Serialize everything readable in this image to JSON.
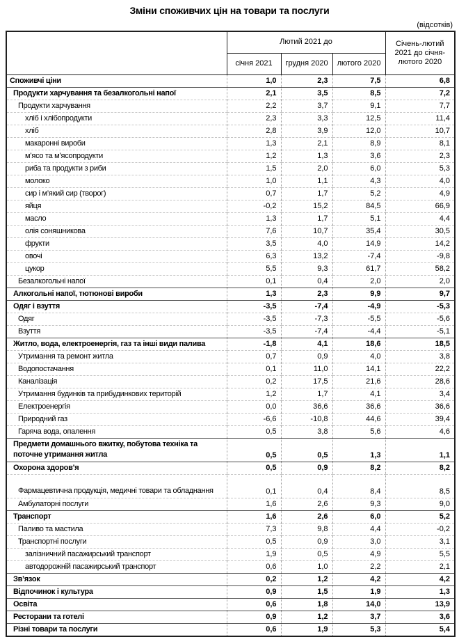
{
  "page": {
    "title": "Зміни споживчих цін на товари та послуги",
    "unit_note": "(відсотків)"
  },
  "table": {
    "header": {
      "period_group": "Лютий 2021 до",
      "columns": [
        "січня 2021",
        "грудня 2020",
        "лютого 2020"
      ],
      "cumulative_column": "Січень-лютий 2021 до січня-лютого 2020"
    },
    "rows": [
      {
        "label": "Споживчі ціни",
        "level": 0,
        "bold": true,
        "section": false,
        "wrap": false,
        "values": [
          "1,0",
          "2,3",
          "7,5",
          "6,8"
        ]
      },
      {
        "label": "Продукти харчування та безалкогольні напої",
        "level": 1,
        "bold": true,
        "section": true,
        "wrap": false,
        "values": [
          "2,1",
          "3,5",
          "8,5",
          "7,2"
        ]
      },
      {
        "label": "Продукти харчування",
        "level": 2,
        "bold": false,
        "section": false,
        "wrap": false,
        "values": [
          "2,2",
          "3,7",
          "9,1",
          "7,7"
        ]
      },
      {
        "label": "хліб і хлібопродукти",
        "level": 3,
        "bold": false,
        "section": false,
        "wrap": false,
        "values": [
          "2,3",
          "3,3",
          "12,5",
          "11,4"
        ]
      },
      {
        "label": "хліб",
        "level": 3,
        "bold": false,
        "section": false,
        "wrap": false,
        "values": [
          "2,8",
          "3,9",
          "12,0",
          "10,7"
        ]
      },
      {
        "label": "макаронні вироби",
        "level": 3,
        "bold": false,
        "section": false,
        "wrap": false,
        "values": [
          "1,3",
          "2,1",
          "8,9",
          "8,1"
        ]
      },
      {
        "label": "м’ясо та м’ясопродукти",
        "level": 3,
        "bold": false,
        "section": false,
        "wrap": false,
        "values": [
          "1,2",
          "1,3",
          "3,6",
          "2,3"
        ]
      },
      {
        "label": "риба та продукти з риби",
        "level": 3,
        "bold": false,
        "section": false,
        "wrap": false,
        "values": [
          "1,5",
          "2,0",
          "6,0",
          "5,3"
        ]
      },
      {
        "label": "молоко",
        "level": 3,
        "bold": false,
        "section": false,
        "wrap": false,
        "values": [
          "1,0",
          "1,1",
          "4,3",
          "4,0"
        ]
      },
      {
        "label": "сир і м’який сир (творог)",
        "level": 3,
        "bold": false,
        "section": false,
        "wrap": false,
        "values": [
          "0,7",
          "1,7",
          "5,2",
          "4,9"
        ]
      },
      {
        "label": "яйця",
        "level": 3,
        "bold": false,
        "section": false,
        "wrap": false,
        "values": [
          "-0,2",
          "15,2",
          "84,5",
          "66,9"
        ]
      },
      {
        "label": "масло",
        "level": 3,
        "bold": false,
        "section": false,
        "wrap": false,
        "values": [
          "1,3",
          "1,7",
          "5,1",
          "4,4"
        ]
      },
      {
        "label": "олія соняшникова",
        "level": 3,
        "bold": false,
        "section": false,
        "wrap": false,
        "values": [
          "7,6",
          "10,7",
          "35,4",
          "30,5"
        ]
      },
      {
        "label": "фрукти",
        "level": 3,
        "bold": false,
        "section": false,
        "wrap": false,
        "values": [
          "3,5",
          "4,0",
          "14,9",
          "14,2"
        ]
      },
      {
        "label": "овочі",
        "level": 3,
        "bold": false,
        "section": false,
        "wrap": false,
        "values": [
          "6,3",
          "13,2",
          "-7,4",
          "-9,8"
        ]
      },
      {
        "label": "цукор",
        "level": 3,
        "bold": false,
        "section": false,
        "wrap": false,
        "values": [
          "5,5",
          "9,3",
          "61,7",
          "58,2"
        ]
      },
      {
        "label": "Безалкогольні напої",
        "level": 2,
        "bold": false,
        "section": false,
        "wrap": false,
        "values": [
          "0,1",
          "0,4",
          "2,0",
          "2,0"
        ]
      },
      {
        "label": "Алкогольні напої, тютюнові вироби",
        "level": 1,
        "bold": true,
        "section": true,
        "wrap": false,
        "values": [
          "1,3",
          "2,3",
          "9,9",
          "9,7"
        ]
      },
      {
        "label": "Одяг і взуття",
        "level": 1,
        "bold": true,
        "section": true,
        "wrap": false,
        "values": [
          "-3,5",
          "-7,4",
          "-4,9",
          "-5,3"
        ]
      },
      {
        "label": "Одяг",
        "level": 2,
        "bold": false,
        "section": false,
        "wrap": false,
        "values": [
          "-3,5",
          "-7,3",
          "-5,5",
          "-5,6"
        ]
      },
      {
        "label": "Взуття",
        "level": 2,
        "bold": false,
        "section": false,
        "wrap": false,
        "values": [
          "-3,5",
          "-7,4",
          "-4,4",
          "-5,1"
        ]
      },
      {
        "label": "Житло, вода, електроенергія, газ та інші види палива",
        "level": 1,
        "bold": true,
        "section": true,
        "wrap": false,
        "values": [
          "-1,8",
          "4,1",
          "18,6",
          "18,5"
        ]
      },
      {
        "label": "Утримання та ремонт житла",
        "level": 2,
        "bold": false,
        "section": false,
        "wrap": false,
        "values": [
          "0,7",
          "0,9",
          "4,0",
          "3,8"
        ]
      },
      {
        "label": "Водопостачання",
        "level": 2,
        "bold": false,
        "section": false,
        "wrap": false,
        "values": [
          "0,1",
          "11,0",
          "14,1",
          "22,2"
        ]
      },
      {
        "label": "Каналізація",
        "level": 2,
        "bold": false,
        "section": false,
        "wrap": false,
        "values": [
          "0,2",
          "17,5",
          "21,6",
          "28,6"
        ]
      },
      {
        "label": "Утримання будинків та прибудинкових територій",
        "level": 2,
        "bold": false,
        "section": false,
        "wrap": false,
        "values": [
          "1,2",
          "1,7",
          "4,1",
          "3,4"
        ]
      },
      {
        "label": "Електроенергія",
        "level": 2,
        "bold": false,
        "section": false,
        "wrap": false,
        "values": [
          "0,0",
          "36,6",
          "36,6",
          "36,6"
        ]
      },
      {
        "label": "Природний газ",
        "level": 2,
        "bold": false,
        "section": false,
        "wrap": false,
        "values": [
          "-6,6",
          "-10,8",
          "44,6",
          "39,4"
        ]
      },
      {
        "label": "Гаряча вода, опалення",
        "level": 2,
        "bold": false,
        "section": false,
        "wrap": false,
        "values": [
          "0,5",
          "3,8",
          "5,6",
          "4,6"
        ]
      },
      {
        "label": "Предмети домашнього вжитку, побутова техніка та поточне утримання житла",
        "level": 1,
        "bold": true,
        "section": true,
        "wrap": true,
        "values": [
          "0,5",
          "0,5",
          "1,3",
          "1,1"
        ]
      },
      {
        "label": "Охорона здоров’я",
        "level": 1,
        "bold": true,
        "section": true,
        "wrap": false,
        "values": [
          "0,5",
          "0,9",
          "8,2",
          "8,2"
        ]
      },
      {
        "label": "Фармацевтична продукція, медичні товари та обладнання",
        "level": 2,
        "bold": false,
        "section": false,
        "wrap": true,
        "values": [
          "0,1",
          "0,4",
          "8,4",
          "8,5"
        ]
      },
      {
        "label": "Амбулаторні послуги",
        "level": 2,
        "bold": false,
        "section": false,
        "wrap": false,
        "values": [
          "1,6",
          "2,6",
          "9,3",
          "9,0"
        ]
      },
      {
        "label": "Транспорт",
        "level": 1,
        "bold": true,
        "section": true,
        "wrap": false,
        "values": [
          "1,6",
          "2,6",
          "6,0",
          "5,2"
        ]
      },
      {
        "label": "Паливо та мастила",
        "level": 2,
        "bold": false,
        "section": false,
        "wrap": false,
        "values": [
          "7,3",
          "9,8",
          "4,4",
          "-0,2"
        ]
      },
      {
        "label": "Транспортні послуги",
        "level": 2,
        "bold": false,
        "section": false,
        "wrap": false,
        "values": [
          "0,5",
          "0,9",
          "3,0",
          "3,1"
        ]
      },
      {
        "label": "залізничний пасажирський транспорт",
        "level": 3,
        "bold": false,
        "section": false,
        "wrap": false,
        "values": [
          "1,9",
          "0,5",
          "4,9",
          "5,5"
        ]
      },
      {
        "label": "автодорожній пасажирський транспорт",
        "level": 3,
        "bold": false,
        "section": false,
        "wrap": false,
        "values": [
          "0,6",
          "1,0",
          "2,2",
          "2,1"
        ]
      },
      {
        "label": "Зв’язок",
        "level": 1,
        "bold": true,
        "section": true,
        "wrap": false,
        "values": [
          "0,2",
          "1,2",
          "4,2",
          "4,2"
        ]
      },
      {
        "label": "Відпочинок і культура",
        "level": 1,
        "bold": true,
        "section": true,
        "wrap": false,
        "values": [
          "0,9",
          "1,5",
          "1,9",
          "1,3"
        ]
      },
      {
        "label": "Освіта",
        "level": 1,
        "bold": true,
        "section": true,
        "wrap": false,
        "values": [
          "0,6",
          "1,8",
          "14,0",
          "13,9"
        ]
      },
      {
        "label": "Ресторани та готелі",
        "level": 1,
        "bold": true,
        "section": true,
        "wrap": false,
        "values": [
          "0,9",
          "1,2",
          "3,7",
          "3,6"
        ]
      },
      {
        "label": "Різні товари та послуги",
        "level": 1,
        "bold": true,
        "section": true,
        "wrap": false,
        "values": [
          "0,6",
          "1,9",
          "5,3",
          "5,4"
        ]
      }
    ]
  }
}
